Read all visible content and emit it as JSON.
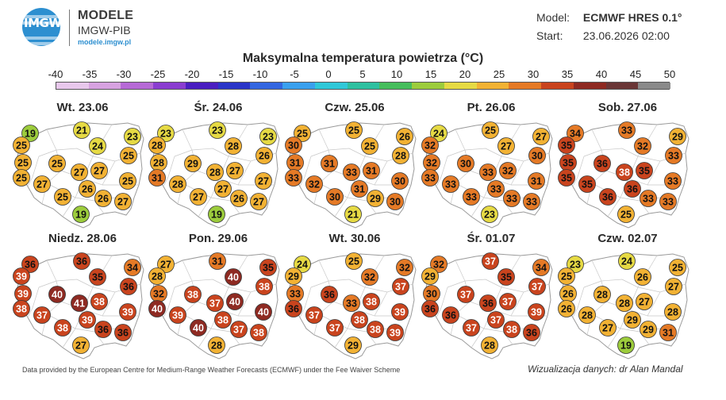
{
  "header": {
    "logo_text": "IMGW",
    "brand_title": "MODELE",
    "brand_sub": "IMGW-PIB",
    "brand_url": "modele.imgw.pl",
    "model_label": "Model:",
    "model_value": "ECMWF HRES 0.1°",
    "start_label": "Start:",
    "start_value": "23.06.2026 02:00"
  },
  "title": "Maksymalna temperatura powietrza (°C)",
  "scale": {
    "ticks": [
      "-40",
      "-35",
      "-30",
      "-25",
      "-20",
      "-15",
      "-10",
      "-5",
      "0",
      "5",
      "10",
      "15",
      "20",
      "25",
      "30",
      "35",
      "40",
      "45",
      "50"
    ],
    "colors": [
      "#e8c8ec",
      "#d7a2e0",
      "#b66ad6",
      "#8a3dd0",
      "#4a1ec0",
      "#2a35c8",
      "#3366e0",
      "#3aa0ee",
      "#30c8d8",
      "#2ec0a0",
      "#46bd5c",
      "#9ccc3c",
      "#e6da44",
      "#f2b234",
      "#e57a26",
      "#c9441e",
      "#8e2a22",
      "#6a3636",
      "#8a8a8a"
    ]
  },
  "panels": [
    {
      "title": "Wt. 23.06",
      "values": [
        "19",
        "21",
        "23",
        "25",
        "24",
        "25",
        "25",
        "25",
        "27",
        "25",
        "27",
        "25",
        "27",
        "26",
        "25",
        "26",
        "27",
        "19"
      ]
    },
    {
      "title": "Śr. 24.06",
      "values": [
        "23",
        "23",
        "23",
        "28",
        "28",
        "26",
        "28",
        "29",
        "28",
        "31",
        "27",
        "27",
        "28",
        "27",
        "27",
        "26",
        "27",
        "19"
      ]
    },
    {
      "title": "Czw. 25.06",
      "values": [
        "25",
        "25",
        "26",
        "30",
        "25",
        "28",
        "31",
        "31",
        "33",
        "33",
        "31",
        "30",
        "32",
        "31",
        "30",
        "29",
        "30",
        "21"
      ]
    },
    {
      "title": "Pt. 26.06",
      "values": [
        "24",
        "25",
        "27",
        "32",
        "27",
        "30",
        "32",
        "30",
        "33",
        "33",
        "32",
        "31",
        "33",
        "33",
        "33",
        "33",
        "33",
        "23"
      ]
    },
    {
      "title": "Sob. 27.06",
      "values": [
        "34",
        "33",
        "29",
        "35",
        "32",
        "33",
        "35",
        "36",
        "38",
        "35",
        "35",
        "33",
        "35",
        "36",
        "36",
        "33",
        "33",
        "25"
      ]
    },
    {
      "title": "Niedz. 28.06",
      "values": [
        "36",
        "36",
        "34",
        "39",
        "35",
        "36",
        "39",
        "40",
        "41",
        "38",
        "38",
        "39",
        "37",
        "39",
        "38",
        "36",
        "36",
        "27"
      ]
    },
    {
      "title": "Pon. 29.06",
      "values": [
        "27",
        "31",
        "35",
        "28",
        "40",
        "38",
        "32",
        "38",
        "37",
        "40",
        "40",
        "40",
        "39",
        "38",
        "40",
        "37",
        "38",
        "28"
      ]
    },
    {
      "title": "Wt. 30.06",
      "values": [
        "24",
        "25",
        "32",
        "29",
        "32",
        "37",
        "33",
        "36",
        "33",
        "36",
        "38",
        "39",
        "37",
        "38",
        "37",
        "38",
        "39",
        "29"
      ]
    },
    {
      "title": "Śr. 01.07",
      "values": [
        "32",
        "37",
        "34",
        "29",
        "35",
        "37",
        "30",
        "37",
        "36",
        "36",
        "37",
        "39",
        "36",
        "37",
        "37",
        "38",
        "36",
        "28"
      ]
    },
    {
      "title": "Czw. 02.07",
      "values": [
        "23",
        "24",
        "25",
        "25",
        "26",
        "27",
        "26",
        "28",
        "28",
        "26",
        "27",
        "28",
        "28",
        "29",
        "27",
        "29",
        "31",
        "19"
      ]
    }
  ],
  "footer": {
    "source": "Data provided by the European Centre for Medium-Range Weather Forecasts (ECMWF) under the Fee Waiver Scheme",
    "credit": "Wizualizacja danych: dr Alan Mandal"
  }
}
